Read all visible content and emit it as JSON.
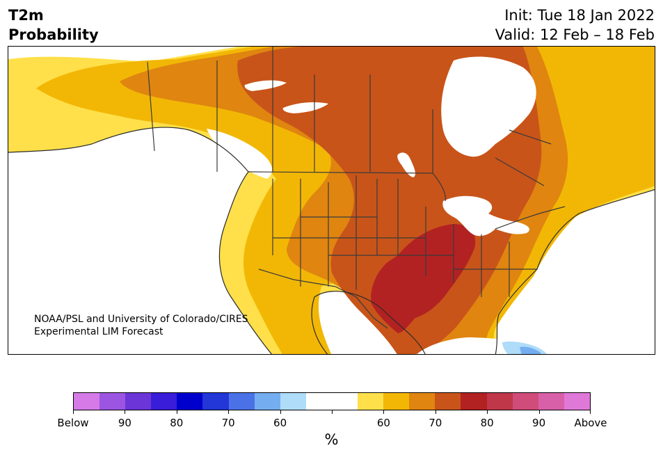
{
  "header": {
    "title_line1": "T2m",
    "title_line2": "Probability",
    "init": "Init: Tue 18 Jan 2022",
    "valid": "Valid: 12 Feb – 18 Feb"
  },
  "credit": {
    "line1": "NOAA/PSL and University of Colorado/CIRES",
    "line2": "Experimental LIM Forecast"
  },
  "colorbar": {
    "colors": [
      "#d67ae8",
      "#9b55e0",
      "#6b35d8",
      "#3a1dd8",
      "#0000cc",
      "#2336d8",
      "#4a72e6",
      "#74aef0",
      "#aedcf9",
      "#ffffff",
      "#ffffff",
      "#ffe04a",
      "#f2b705",
      "#df8510",
      "#c8541a",
      "#b22222",
      "#c0374a",
      "#d04c7a",
      "#d860a8",
      "#e078d8"
    ],
    "tick_labels": [
      "Below",
      "90",
      "80",
      "70",
      "60",
      "",
      "60",
      "70",
      "80",
      "90",
      "Above"
    ],
    "unit": "%"
  },
  "map": {
    "categories": {
      "near_normal": "#ffffff",
      "above_60": "#ffe04a",
      "above_65": "#f2b705",
      "above_70": "#df8510",
      "above_75": "#c8541a",
      "above_80": "#b22222",
      "below_60": "#aedcf9",
      "below_65": "#74aef0",
      "lakes": "#ffffff",
      "borders": "#3a3a3a"
    }
  }
}
